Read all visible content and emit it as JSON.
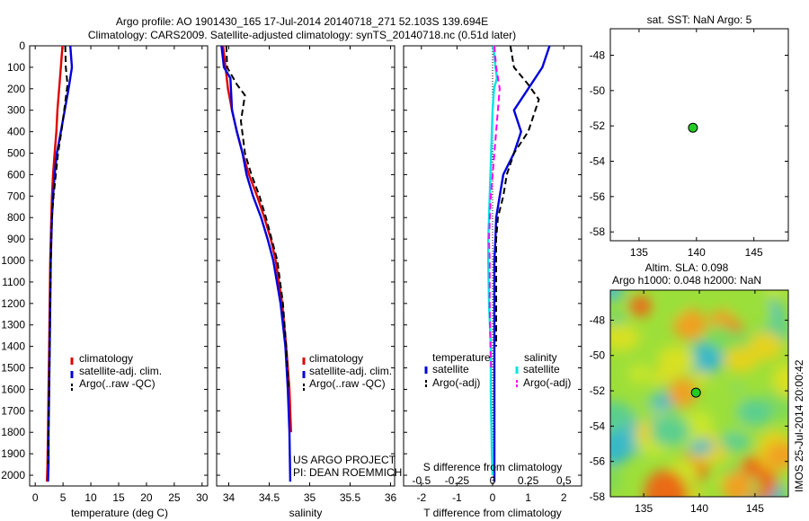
{
  "header": {
    "line1": "Argo profile: AO 1901430_165 17-Jul-2014 20140718_271 52.103S 139.694E",
    "line2": "Climatology: CARS2009. Satellite-adjusted climatology: synTS_20140718.nc (0.51d later)"
  },
  "panels": {
    "temperature": {
      "xlabel": "temperature (deg C)",
      "legend": [
        "climatology",
        "satellite-adj. clim.",
        "Argo(..raw -QC)"
      ]
    },
    "salinity": {
      "xlabel": "salinity",
      "legend": [
        "climatology",
        "satellite-adj. clim.",
        "Argo(..raw -QC)"
      ],
      "project": "US ARGO PROJECT",
      "pi": "PI: DEAN ROEMMICH"
    },
    "difference": {
      "xlabel_bottom": "T difference from climatology",
      "xlabel_top": "S difference from climatology",
      "legend_temp_title": "temperature",
      "legend_sal_title": "salinity",
      "legend_temp": [
        "satellite",
        "Argo(-adj)"
      ],
      "legend_sal": [
        "satellite",
        "Argo(-adj)"
      ]
    },
    "sst_map": {
      "title": "sat. SST: NaN Argo: 5"
    },
    "sla_map": {
      "title1": "Altim. SLA: 0.098",
      "title2": "Argo h1000: 0.048 h2000: NaN",
      "side_label": "IMOS 25-Jul-2014 20:00:42"
    }
  },
  "colors": {
    "climatology": "#e00000",
    "satellite": "#0000dd",
    "argo": "#000000",
    "cyan": "#00e5e5",
    "magenta": "#ff00ff",
    "marker": "#22cc22"
  },
  "chart_data": [
    {
      "type": "line",
      "xlabel": "temperature (deg C)",
      "ylabel": "",
      "xlim": [
        -1,
        31
      ],
      "ylim": [
        2050,
        0
      ],
      "xticks": [
        0,
        5,
        10,
        15,
        20,
        25,
        30
      ],
      "yticks": [
        0,
        100,
        200,
        300,
        400,
        500,
        600,
        700,
        800,
        900,
        1000,
        1100,
        1200,
        1300,
        1400,
        1500,
        1600,
        1700,
        1800,
        1900,
        2000
      ],
      "series": [
        {
          "name": "climatology",
          "color": "climatology",
          "style": "solid",
          "x": [
            4.9,
            4.6,
            4.3,
            4.0,
            3.8,
            3.5,
            3.2,
            3.0,
            2.9,
            2.8,
            2.7,
            2.6,
            2.5,
            2.4,
            2.3,
            2.2,
            2.1
          ],
          "y": [
            0,
            100,
            200,
            300,
            400,
            500,
            600,
            700,
            800,
            900,
            1000,
            1200,
            1400,
            1600,
            1800,
            1950,
            2030
          ]
        },
        {
          "name": "satellite-adj. clim.",
          "color": "satellite",
          "style": "solid",
          "x": [
            6.3,
            6.6,
            6.0,
            5.3,
            4.6,
            3.9,
            3.5,
            3.2,
            3.0,
            2.9,
            2.8,
            2.7,
            2.6,
            2.5,
            2.4,
            2.4,
            2.3
          ],
          "y": [
            0,
            100,
            200,
            300,
            400,
            500,
            600,
            700,
            800,
            900,
            1000,
            1200,
            1400,
            1600,
            1800,
            1950,
            2030
          ]
        },
        {
          "name": "Argo(..raw -QC)",
          "color": "argo",
          "style": "dashed",
          "x": [
            5.4,
            5.5,
            5.8,
            5.2,
            4.7,
            4.1,
            3.7,
            3.3,
            3.0,
            2.9,
            2.8,
            2.7,
            2.6,
            2.5,
            2.4,
            2.3
          ],
          "y": [
            0,
            100,
            180,
            300,
            400,
            500,
            600,
            700,
            800,
            900,
            1000,
            1200,
            1400,
            1600,
            1800,
            1950
          ]
        }
      ]
    },
    {
      "type": "line",
      "xlabel": "salinity",
      "ylabel": "",
      "xlim": [
        33.85,
        36.05
      ],
      "ylim": [
        2050,
        0
      ],
      "xticks": [
        34,
        34.5,
        35,
        35.5,
        36
      ],
      "xticklabels": [
        "34",
        "34.5",
        "35",
        "35.5",
        "36"
      ],
      "series": [
        {
          "name": "climatology",
          "color": "climatology",
          "style": "solid",
          "x": [
            33.93,
            33.96,
            33.99,
            34.04,
            34.1,
            34.17,
            34.25,
            34.35,
            34.44,
            34.52,
            34.58,
            34.66,
            34.71,
            34.75,
            34.77
          ],
          "y": [
            0,
            100,
            200,
            300,
            400,
            500,
            600,
            700,
            800,
            900,
            1000,
            1200,
            1400,
            1600,
            1800
          ]
        },
        {
          "name": "satellite-adj. clim.",
          "color": "satellite",
          "style": "solid",
          "x": [
            33.91,
            33.94,
            34.02,
            34.04,
            34.1,
            34.17,
            34.22,
            34.3,
            34.4,
            34.48,
            34.55,
            34.64,
            34.7,
            34.73,
            34.75,
            34.76
          ],
          "y": [
            0,
            100,
            150,
            300,
            400,
            500,
            600,
            700,
            800,
            900,
            1000,
            1200,
            1400,
            1600,
            1800,
            2030
          ]
        },
        {
          "name": "Argo(..raw -QC)",
          "color": "argo",
          "style": "dashed",
          "x": [
            33.97,
            33.98,
            34.1,
            34.2,
            34.15,
            34.2,
            34.28,
            34.38,
            34.46,
            34.53,
            34.6,
            34.67,
            34.71,
            34.74
          ],
          "y": [
            0,
            100,
            180,
            230,
            350,
            500,
            600,
            700,
            800,
            900,
            1000,
            1200,
            1400,
            1600
          ]
        }
      ]
    },
    {
      "type": "line",
      "xlabel": "T difference from climatology",
      "ylabel": "",
      "xlim": [
        -2.5,
        2.5
      ],
      "ylim": [
        2050,
        0
      ],
      "xticks": [
        -2,
        -1,
        0,
        1,
        2
      ],
      "secondary_xlabel": "S difference from climatology",
      "secondary_xticks": [
        "-0.5",
        "-0.25",
        "0",
        "0.25",
        "0.5"
      ],
      "series": [
        {
          "name": "satellite (temperature)",
          "color": "satellite",
          "style": "solid",
          "x": [
            1.6,
            1.4,
            1.0,
            0.6,
            0.8,
            0.6,
            0.3,
            0.2,
            0.1,
            0.08,
            0.05,
            0.05,
            0.05,
            0.05,
            0.05,
            0.05,
            0.05
          ],
          "y": [
            0,
            100,
            200,
            300,
            400,
            500,
            600,
            700,
            800,
            900,
            1000,
            1200,
            1400,
            1600,
            1800,
            1950,
            2030
          ]
        },
        {
          "name": "Argo(-adj) (temperature)",
          "color": "argo",
          "style": "dashed",
          "x": [
            0.5,
            0.6,
            1.0,
            1.3,
            1.0,
            0.6,
            0.4,
            0.3,
            0.15,
            0.1,
            0.1,
            0.1,
            0.1
          ],
          "y": [
            0,
            100,
            180,
            250,
            400,
            500,
            600,
            700,
            800,
            900,
            1000,
            1200,
            1400
          ]
        },
        {
          "name": "satellite (salinity)",
          "color": "cyan",
          "style": "solid",
          "x": [
            0.02,
            0.08,
            0.12,
            0.04,
            0.0,
            -0.04,
            -0.08,
            -0.12,
            -0.12,
            -0.1,
            -0.05,
            -0.05,
            -0.03,
            -0.02,
            -0.01,
            0.0
          ],
          "y": [
            0,
            100,
            150,
            200,
            300,
            500,
            700,
            900,
            1000,
            1200,
            1400,
            1600,
            1800,
            1900,
            1950,
            2000
          ]
        },
        {
          "name": "Argo(-adj) (salinity)",
          "color": "magenta",
          "style": "dashed",
          "x": [
            0.05,
            0.1,
            0.2,
            0.15,
            0.05,
            -0.05,
            -0.1,
            -0.08,
            -0.08,
            -0.06,
            -0.04
          ],
          "y": [
            0,
            100,
            200,
            300,
            500,
            700,
            900,
            1000,
            1200,
            1400,
            1500
          ]
        }
      ]
    },
    {
      "type": "scatter",
      "title": "sat. SST: NaN Argo: 5",
      "xlim": [
        132.5,
        148
      ],
      "ylim": [
        -58.5,
        -46.5
      ],
      "xticks": [
        135,
        140,
        145
      ],
      "yticks": [
        -48,
        -50,
        -52,
        -54,
        -56,
        -58
      ],
      "points": [
        {
          "x": 139.694,
          "y": -52.103
        }
      ]
    },
    {
      "type": "heatmap",
      "title": "Altim. SLA: 0.098 | Argo h1000: 0.048 h2000: NaN",
      "xlim": [
        132,
        148
      ],
      "ylim": [
        -58,
        -46.3
      ],
      "xticks": [
        135,
        140,
        145
      ],
      "yticks": [
        -48,
        -50,
        -52,
        -54,
        -56,
        -58
      ],
      "points": [
        {
          "x": 139.694,
          "y": -52.103
        }
      ]
    }
  ]
}
